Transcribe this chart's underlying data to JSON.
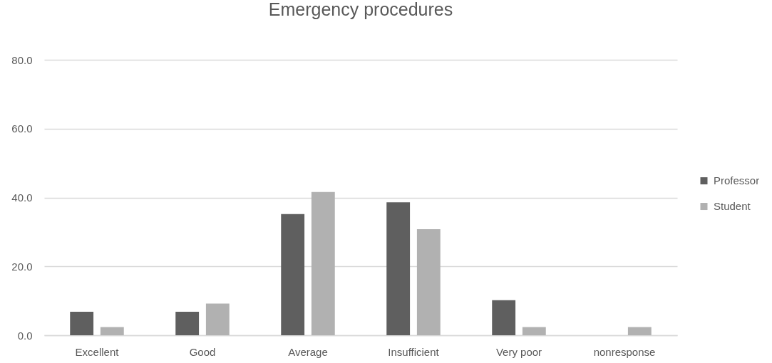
{
  "chart_data": {
    "type": "bar",
    "title": "Emergency procedures",
    "categories": [
      "Excellent",
      "Good",
      "Average",
      "Insufficient",
      "Very poor",
      "nonresponse"
    ],
    "series": [
      {
        "name": "Professor",
        "color": "#5f5f5f",
        "values": [
          6.8,
          6.8,
          35.2,
          38.6,
          10.2,
          null
        ]
      },
      {
        "name": "Student",
        "color": "#b1b1b1",
        "values": [
          2.4,
          9.2,
          41.6,
          30.8,
          2.4,
          2.4
        ]
      }
    ],
    "ylim": [
      0,
      80
    ],
    "yticks": [
      {
        "value": 0,
        "label": "0.0"
      },
      {
        "value": 20,
        "label": "20.0"
      },
      {
        "value": 40,
        "label": "40.0"
      },
      {
        "value": 60,
        "label": "60.0"
      },
      {
        "value": 80,
        "label": "80.0"
      }
    ],
    "grid": "y",
    "legend": "right"
  }
}
